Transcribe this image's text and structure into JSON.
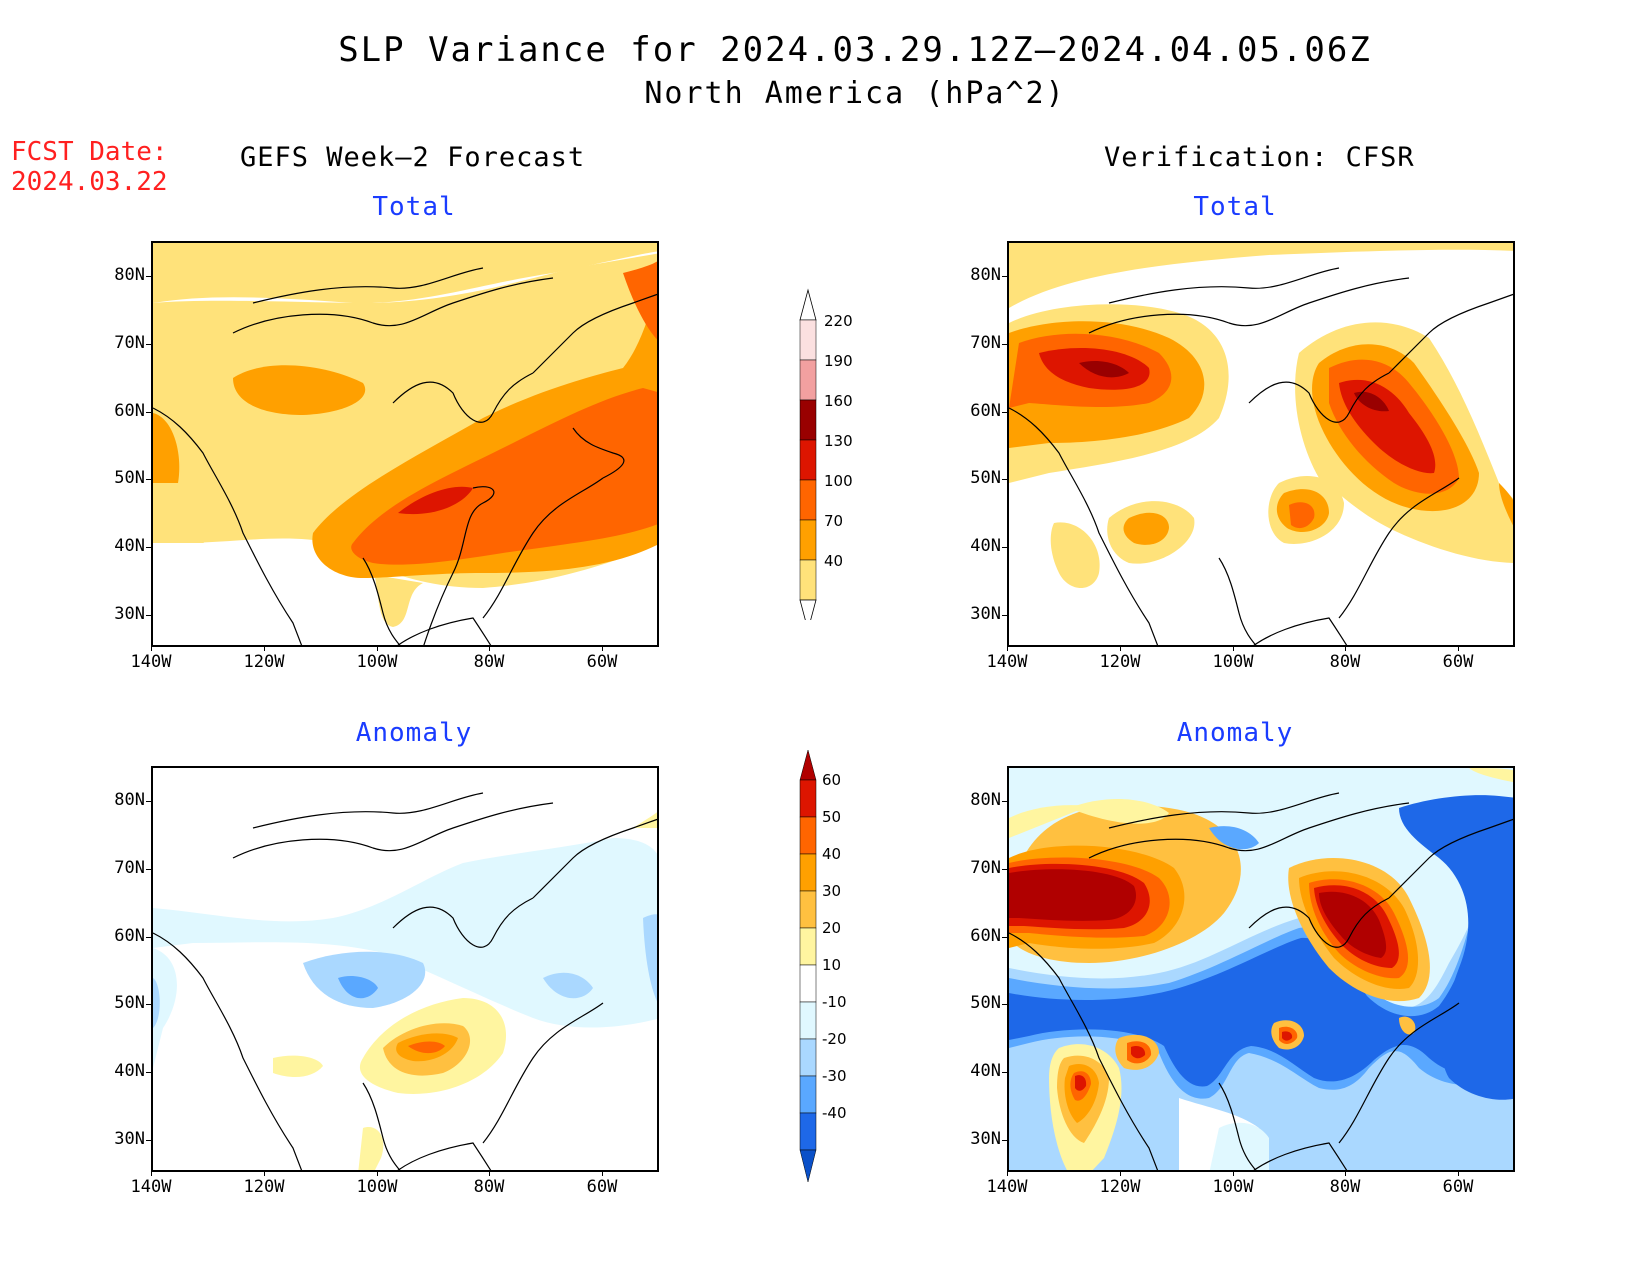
{
  "title": "SLP Variance for 2024.03.29.12Z–2024.04.05.06Z",
  "subtitle": "North America (hPa^2)",
  "fcst_date_label": "FCST Date:",
  "fcst_date": "2024.03.22",
  "columns": {
    "left": "GEFS Week–2 Forecast",
    "right": "Verification: CFSR"
  },
  "panel_titles": {
    "total": "Total",
    "anomaly": "Anomaly"
  },
  "lat_labels": [
    "80N",
    "70N",
    "60N",
    "50N",
    "40N",
    "30N"
  ],
  "lon_labels": [
    "140W",
    "120W",
    "100W",
    "80W",
    "60W"
  ],
  "colorbar_total": {
    "labels": [
      "220",
      "190",
      "160",
      "130",
      "100",
      "70",
      "40"
    ],
    "colors": [
      "#fbe0e0",
      "#f2a0a0",
      "#990000",
      "#dd1500",
      "#ff6500",
      "#ffa000",
      "#ffe27a"
    ]
  },
  "colorbar_anomaly": {
    "labels": [
      "60",
      "50",
      "40",
      "30",
      "20",
      "10",
      "-10",
      "-20",
      "-30",
      "-40"
    ],
    "colors": [
      "#b00000",
      "#dd1500",
      "#ff6500",
      "#ffa000",
      "#ffc040",
      "#fff5a0",
      "#ffffff",
      "#e0f8ff",
      "#aad8ff",
      "#5aa8ff",
      "#1e68e8",
      "#0a50c8"
    ]
  }
}
